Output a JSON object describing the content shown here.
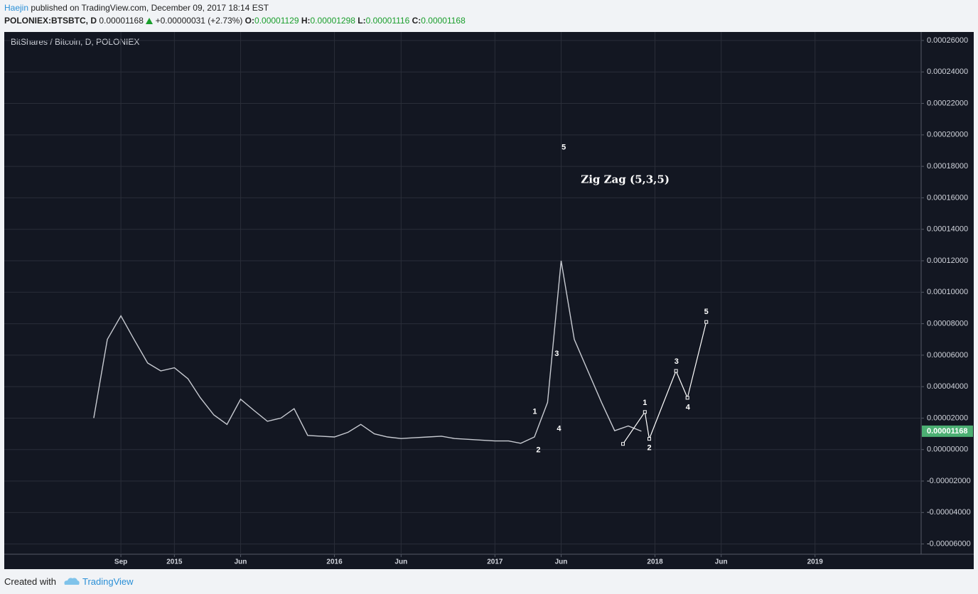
{
  "header": {
    "author": "Haejin",
    "published": "published on TradingView.com, December 09, 2017 18:14 EST",
    "symbol": "POLONIEX:BTSBTC, D",
    "price": "0.00001168",
    "change": "+0.00000031 (+2.73%)",
    "ohlc": [
      [
        "O:",
        "0.00001129"
      ],
      [
        "H:",
        "0.00001298"
      ],
      [
        "L:",
        "0.00001116"
      ],
      [
        "C:",
        "0.00001168"
      ]
    ]
  },
  "footer": {
    "created": "Created with",
    "brand": "TradingView"
  },
  "chart_data": {
    "type": "line",
    "title": "BitShares / Bitcoin, D, POLONIEX",
    "x": [
      "2014-07",
      "2014-08",
      "2014-09",
      "2014-10",
      "2014-11",
      "2014-12",
      "2015-01",
      "2015-02",
      "2015-03",
      "2015-04",
      "2015-05",
      "2015-06",
      "2015-07",
      "2015-08",
      "2015-09",
      "2015-10",
      "2015-11",
      "2015-12",
      "2016-01",
      "2016-02",
      "2016-03",
      "2016-04",
      "2016-05",
      "2016-06",
      "2016-07",
      "2016-08",
      "2016-09",
      "2016-10",
      "2016-11",
      "2016-12",
      "2017-01",
      "2017-02",
      "2017-03",
      "2017-04",
      "2017-05",
      "2017-06",
      "2017-07",
      "2017-08",
      "2017-09",
      "2017-10",
      "2017-11",
      "2017-12"
    ],
    "series": [
      {
        "color": "#c8cbd2",
        "values": [
          2e-05,
          7e-05,
          8.5e-05,
          7e-05,
          5.5e-05,
          5e-05,
          5.2e-05,
          4.5e-05,
          3.3e-05,
          2.2e-05,
          1.6e-05,
          3.2e-05,
          2.5e-05,
          1.8e-05,
          2e-05,
          2.6e-05,
          9e-06,
          8.5e-06,
          8e-06,
          1.1e-05,
          1.6e-05,
          1e-05,
          8e-06,
          7e-06,
          7.5e-06,
          8e-06,
          8.5e-06,
          7e-06,
          6.5e-06,
          6e-06,
          5.5e-06,
          5.5e-06,
          4e-06,
          8e-06,
          3e-05,
          0.00012,
          7e-05,
          5e-05,
          3e-05,
          1.2e-05,
          1.5e-05,
          1.168e-05
        ]
      }
    ],
    "projection": {
      "color": "#ffffff",
      "x": [
        "2017-10-20",
        "2017-12-09",
        "2017-12-19",
        "2018-02-18",
        "2018-03-16",
        "2018-04-28"
      ],
      "values": [
        3.6e-06,
        2.39e-05,
        6.8e-06,
        5e-05,
        3.29e-05,
        8.11e-05
      ]
    },
    "annotations": [
      {
        "text": "1",
        "x": "2017-04-02",
        "y": 2.39e-05
      },
      {
        "text": "2",
        "x": "2017-04-10",
        "y": -5e-07
      },
      {
        "text": "3",
        "x": "2017-05-22",
        "y": 6.08e-05
      },
      {
        "text": "4",
        "x": "2017-05-27",
        "y": 1.31e-05
      },
      {
        "text": "5",
        "x": "2017-06-07",
        "y": 0.0001919
      },
      {
        "text": "Zig Zag (5,3,5)",
        "x": "2017-07-16",
        "y": 0.0001712
      },
      {
        "text": "1",
        "x": "2017-12-09",
        "y": 2.97e-05
      },
      {
        "text": "2",
        "x": "2017-12-19",
        "y": 9e-07
      },
      {
        "text": "3",
        "x": "2018-02-19",
        "y": 5.59e-05
      },
      {
        "text": "4",
        "x": "2018-03-17",
        "y": 2.66e-05
      },
      {
        "text": "5",
        "x": "2018-04-28",
        "y": 8.74e-05
      }
    ],
    "last_price": {
      "value": 1.168e-05,
      "label": "0.00001168"
    },
    "xlim": [
      "2013-12-09",
      "2019-08-31"
    ],
    "xticks": [
      {
        "value": "2014-09",
        "label": "Sep"
      },
      {
        "value": "2015-01",
        "label": "2015"
      },
      {
        "value": "2015-06",
        "label": "Jun"
      },
      {
        "value": "2016-01",
        "label": "2016"
      },
      {
        "value": "2016-06",
        "label": "Jun"
      },
      {
        "value": "2017-01",
        "label": "2017"
      },
      {
        "value": "2017-06",
        "label": "Jun"
      },
      {
        "value": "2018-01",
        "label": "2018"
      },
      {
        "value": "2018-06",
        "label": "Jun"
      },
      {
        "value": "2019-01",
        "label": "2019"
      }
    ],
    "ylim": [
      -6.65e-05,
      0.0002654
    ],
    "yticks": [
      {
        "value": 0.00026,
        "label": "0.00026000"
      },
      {
        "value": 0.00024,
        "label": "0.00024000"
      },
      {
        "value": 0.00022,
        "label": "0.00022000"
      },
      {
        "value": 0.0002,
        "label": "0.00020000"
      },
      {
        "value": 0.00018,
        "label": "0.00018000"
      },
      {
        "value": 0.00016,
        "label": "0.00016000"
      },
      {
        "value": 0.00014,
        "label": "0.00014000"
      },
      {
        "value": 0.00012,
        "label": "0.00012000"
      },
      {
        "value": 0.0001,
        "label": "0.00010000"
      },
      {
        "value": 8e-05,
        "label": "0.00008000"
      },
      {
        "value": 6e-05,
        "label": "0.00006000"
      },
      {
        "value": 4e-05,
        "label": "0.00004000"
      },
      {
        "value": 2e-05,
        "label": "0.00002000"
      },
      {
        "value": 0,
        "label": "0.00000000"
      },
      {
        "value": -2e-05,
        "label": "-0.00002000"
      },
      {
        "value": -4e-05,
        "label": "-0.00004000"
      },
      {
        "value": -6e-05,
        "label": "-0.00006000"
      }
    ],
    "grid": true
  }
}
